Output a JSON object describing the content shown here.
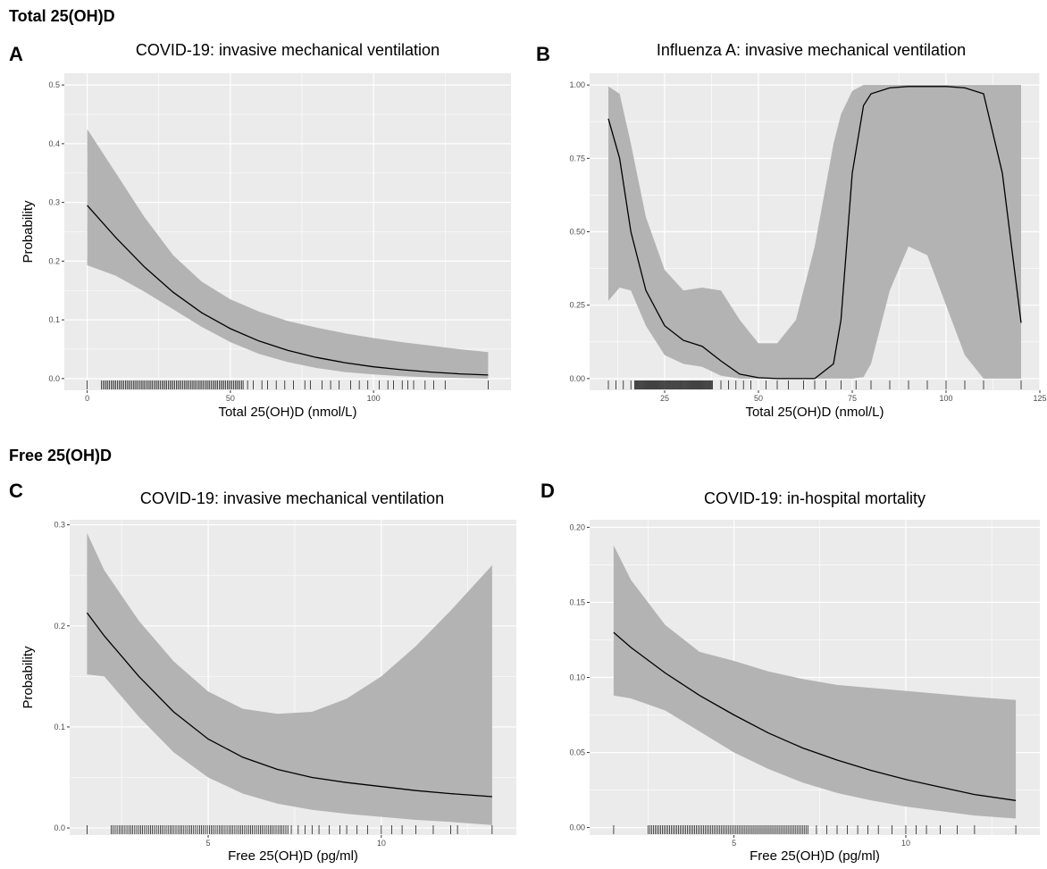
{
  "sections": [
    {
      "title": "Total 25(OH)D"
    },
    {
      "title": "Free 25(OH)D"
    }
  ],
  "colors": {
    "panel_bg": "#ebebeb",
    "grid": "#ffffff",
    "ribbon": "#b3b3b3",
    "line": "#000000"
  },
  "chart_data": [
    {
      "type": "line",
      "letter": "A",
      "title": "COVID-19: invasive mechanical ventilation",
      "xlabel": "Total 25(OH)D (nmol/L)",
      "ylabel": "Probability",
      "xlim": [
        -8,
        148
      ],
      "ylim": [
        -0.02,
        0.52
      ],
      "xticks": [
        0,
        50,
        100
      ],
      "yticks": [
        0.0,
        0.1,
        0.2,
        0.3,
        0.4,
        0.5
      ],
      "ytick_labels": [
        "0.0",
        "0.1",
        "0.2",
        "0.3",
        "0.4",
        "0.5"
      ],
      "x": [
        0,
        10,
        20,
        30,
        40,
        50,
        60,
        70,
        80,
        90,
        100,
        110,
        120,
        130,
        140
      ],
      "y": [
        0.295,
        0.24,
        0.19,
        0.147,
        0.112,
        0.085,
        0.064,
        0.048,
        0.036,
        0.027,
        0.02,
        0.015,
        0.011,
        0.008,
        0.006
      ],
      "lower": [
        0.193,
        0.175,
        0.148,
        0.118,
        0.088,
        0.062,
        0.042,
        0.028,
        0.018,
        0.011,
        0.007,
        0.004,
        0.002,
        0.001,
        0.0
      ],
      "upper": [
        0.425,
        0.35,
        0.275,
        0.21,
        0.165,
        0.135,
        0.114,
        0.098,
        0.087,
        0.077,
        0.069,
        0.062,
        0.056,
        0.05,
        0.045
      ],
      "rug_dense": [
        [
          5,
          55
        ]
      ],
      "rug": [
        0,
        56,
        58,
        61,
        63,
        66,
        69,
        72,
        76,
        78,
        82,
        85,
        88,
        92,
        95,
        98,
        102,
        105,
        107,
        110,
        112,
        114,
        118,
        121,
        125,
        140
      ]
    },
    {
      "type": "line",
      "letter": "B",
      "title": "Influenza A: invasive mechanical ventilation",
      "xlabel": "Total 25(OH)D (nmol/L)",
      "ylabel": "",
      "xlim": [
        5,
        125
      ],
      "ylim": [
        -0.04,
        1.04
      ],
      "xticks": [
        25,
        50,
        75,
        100,
        125
      ],
      "yticks": [
        0.0,
        0.25,
        0.5,
        0.75,
        1.0
      ],
      "ytick_labels": [
        "0.00",
        "0.25",
        "0.50",
        "0.75",
        "1.00"
      ],
      "x": [
        10,
        13,
        16,
        20,
        25,
        30,
        35,
        40,
        45,
        50,
        55,
        60,
        65,
        70,
        72,
        75,
        78,
        80,
        85,
        90,
        95,
        100,
        105,
        110,
        115,
        120
      ],
      "y": [
        0.885,
        0.75,
        0.5,
        0.3,
        0.18,
        0.13,
        0.11,
        0.06,
        0.015,
        0.003,
        0.0,
        0.0,
        0.0,
        0.05,
        0.2,
        0.7,
        0.93,
        0.97,
        0.99,
        0.995,
        0.995,
        0.995,
        0.99,
        0.97,
        0.7,
        0.19
      ],
      "lower": [
        0.265,
        0.31,
        0.3,
        0.18,
        0.08,
        0.05,
        0.04,
        0.01,
        0.0,
        0.0,
        0.0,
        0.0,
        0.0,
        0.0,
        0.0,
        0.0,
        0.005,
        0.05,
        0.3,
        0.45,
        0.42,
        0.25,
        0.08,
        0.0,
        0.0,
        0.0
      ],
      "upper": [
        0.995,
        0.97,
        0.8,
        0.55,
        0.37,
        0.3,
        0.31,
        0.3,
        0.2,
        0.12,
        0.12,
        0.2,
        0.45,
        0.8,
        0.9,
        0.98,
        1.0,
        1.0,
        1.0,
        1.0,
        1.0,
        1.0,
        1.0,
        1.0,
        1.0,
        1.0
      ],
      "rug_dense": [
        [
          17,
          38
        ]
      ],
      "rug": [
        10,
        12,
        14,
        16,
        40,
        42,
        44,
        46,
        48,
        52,
        55,
        58,
        62,
        65,
        68,
        72,
        76,
        80,
        85,
        90,
        95,
        100,
        105,
        110,
        120
      ]
    },
    {
      "type": "line",
      "letter": "C",
      "title": "COVID-19: invasive mechanical ventilation",
      "xlabel": "Free 25(OH)D (pg/ml)",
      "ylabel": "Probability",
      "xlim": [
        1.0,
        13.9
      ],
      "ylim": [
        -0.007,
        0.305
      ],
      "xticks": [
        5,
        10
      ],
      "yticks": [
        0.0,
        0.1,
        0.2,
        0.3
      ],
      "ytick_labels": [
        "0.0",
        "0.1",
        "0.2",
        "0.3"
      ],
      "x": [
        1.5,
        2,
        3,
        4,
        5,
        6,
        7,
        8,
        9,
        10,
        11,
        12,
        13.2
      ],
      "y": [
        0.213,
        0.19,
        0.15,
        0.115,
        0.088,
        0.07,
        0.058,
        0.05,
        0.045,
        0.041,
        0.037,
        0.034,
        0.031
      ],
      "lower": [
        0.152,
        0.15,
        0.11,
        0.075,
        0.05,
        0.034,
        0.024,
        0.018,
        0.014,
        0.011,
        0.008,
        0.006,
        0.003
      ],
      "upper": [
        0.292,
        0.255,
        0.205,
        0.165,
        0.135,
        0.118,
        0.113,
        0.115,
        0.128,
        0.15,
        0.18,
        0.215,
        0.26
      ],
      "rug_dense": [
        [
          2.2,
          7.3
        ]
      ],
      "rug": [
        1.5,
        7.4,
        7.6,
        7.8,
        8.0,
        8.2,
        8.5,
        8.8,
        9.0,
        9.3,
        9.6,
        10.0,
        10.3,
        10.6,
        11.0,
        11.5,
        12.0,
        12.2,
        13.2
      ]
    },
    {
      "type": "line",
      "letter": "D",
      "title": "COVID-19: in-hospital mortality",
      "xlabel": "Free 25(OH)D (pg/ml)",
      "ylabel": "",
      "xlim": [
        0.8,
        13.9
      ],
      "ylim": [
        -0.005,
        0.205
      ],
      "xticks": [
        5,
        10
      ],
      "yticks": [
        0.0,
        0.05,
        0.1,
        0.15,
        0.2
      ],
      "ytick_labels": [
        "0.00",
        "0.05",
        "0.10",
        "0.15",
        "0.20"
      ],
      "x": [
        1.5,
        2,
        3,
        4,
        5,
        6,
        7,
        8,
        9,
        10,
        11,
        12,
        13.2
      ],
      "y": [
        0.13,
        0.12,
        0.103,
        0.088,
        0.075,
        0.063,
        0.053,
        0.045,
        0.038,
        0.032,
        0.027,
        0.022,
        0.018
      ],
      "lower": [
        0.088,
        0.086,
        0.078,
        0.064,
        0.05,
        0.039,
        0.03,
        0.023,
        0.018,
        0.014,
        0.011,
        0.008,
        0.006
      ],
      "upper": [
        0.188,
        0.165,
        0.135,
        0.117,
        0.111,
        0.104,
        0.099,
        0.095,
        0.093,
        0.091,
        0.089,
        0.087,
        0.085
      ],
      "rug_dense": [
        [
          2.5,
          7.2
        ]
      ],
      "rug": [
        1.5,
        7.4,
        7.7,
        8.0,
        8.3,
        8.6,
        8.9,
        9.2,
        9.6,
        10.0,
        10.3,
        10.6,
        11.0,
        11.5,
        12.0,
        13.2
      ]
    }
  ]
}
